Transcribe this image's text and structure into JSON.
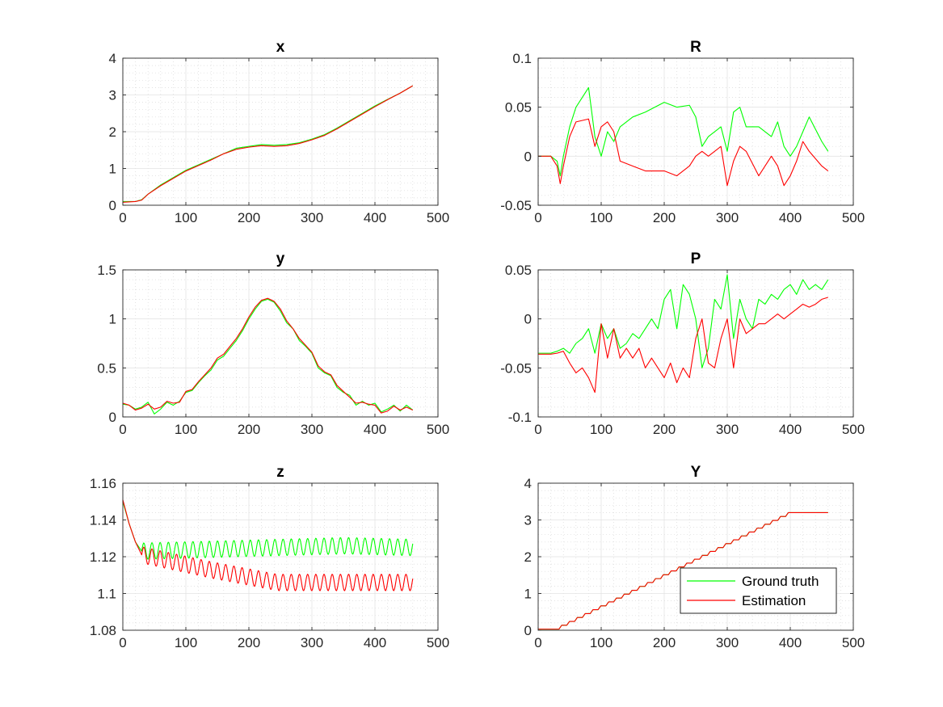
{
  "colors": {
    "ground_truth": "#00ff00",
    "estimation": "#ff0000",
    "axis": "#262626",
    "background": "#ffffff"
  },
  "legend": {
    "placement": "lower-right of bottom-right subplot",
    "entries": [
      "Ground truth",
      "Estimation"
    ]
  },
  "chart_data": [
    {
      "type": "line",
      "title": "x",
      "xlim": [
        0,
        500
      ],
      "ylim": [
        0,
        4
      ],
      "xticks": [
        "0",
        "100",
        "200",
        "300",
        "400",
        "500"
      ],
      "yticks": [
        "0",
        "1",
        "2",
        "3",
        "4"
      ],
      "grid": "major and minor",
      "series": [
        {
          "name": "Ground truth",
          "x": [
            0,
            20,
            30,
            40,
            60,
            80,
            100,
            120,
            140,
            160,
            180,
            200,
            220,
            240,
            260,
            280,
            300,
            320,
            340,
            360,
            380,
            400,
            420,
            440,
            460
          ],
          "y": [
            0.1,
            0.1,
            0.15,
            0.3,
            0.55,
            0.75,
            0.95,
            1.1,
            1.25,
            1.4,
            1.55,
            1.6,
            1.65,
            1.63,
            1.65,
            1.7,
            1.8,
            1.92,
            2.1,
            2.3,
            2.5,
            2.7,
            2.88,
            3.05,
            3.25
          ]
        },
        {
          "name": "Estimation",
          "x": [
            0,
            20,
            30,
            40,
            60,
            80,
            100,
            120,
            140,
            160,
            180,
            200,
            220,
            240,
            260,
            280,
            300,
            320,
            340,
            360,
            380,
            400,
            420,
            440,
            460
          ],
          "y": [
            0.08,
            0.1,
            0.14,
            0.3,
            0.53,
            0.73,
            0.93,
            1.08,
            1.23,
            1.4,
            1.52,
            1.58,
            1.62,
            1.6,
            1.62,
            1.68,
            1.78,
            1.9,
            2.08,
            2.28,
            2.48,
            2.68,
            2.87,
            3.05,
            3.25
          ]
        }
      ]
    },
    {
      "type": "line",
      "title": "R",
      "xlim": [
        0,
        500
      ],
      "ylim": [
        -0.05,
        0.1
      ],
      "xticks": [
        "0",
        "100",
        "200",
        "300",
        "400",
        "500"
      ],
      "yticks": [
        "-0.05",
        "0",
        "0.05",
        "0.1"
      ],
      "grid": "major and minor",
      "series": [
        {
          "name": "Ground truth",
          "x": [
            0,
            20,
            30,
            35,
            40,
            50,
            60,
            80,
            90,
            100,
            110,
            120,
            130,
            150,
            170,
            200,
            220,
            240,
            250,
            260,
            270,
            290,
            300,
            310,
            320,
            330,
            350,
            370,
            380,
            390,
            400,
            410,
            420,
            430,
            450,
            460
          ],
          "y": [
            0,
            0,
            -0.005,
            -0.02,
            0.0,
            0.03,
            0.05,
            0.07,
            0.02,
            0.0,
            0.025,
            0.015,
            0.03,
            0.04,
            0.045,
            0.055,
            0.05,
            0.052,
            0.04,
            0.01,
            0.02,
            0.03,
            0.005,
            0.045,
            0.05,
            0.03,
            0.03,
            0.02,
            0.035,
            0.01,
            0.0,
            0.01,
            0.025,
            0.04,
            0.015,
            0.005
          ]
        },
        {
          "name": "Estimation",
          "x": [
            0,
            20,
            30,
            35,
            40,
            50,
            60,
            80,
            90,
            100,
            110,
            120,
            130,
            150,
            170,
            200,
            220,
            240,
            250,
            260,
            270,
            290,
            300,
            310,
            320,
            330,
            350,
            370,
            380,
            390,
            400,
            410,
            420,
            430,
            450,
            460
          ],
          "y": [
            0,
            0,
            -0.01,
            -0.028,
            -0.01,
            0.02,
            0.035,
            0.038,
            0.01,
            0.03,
            0.035,
            0.025,
            -0.005,
            -0.01,
            -0.015,
            -0.015,
            -0.02,
            -0.01,
            0.0,
            0.005,
            0.0,
            0.01,
            -0.03,
            -0.005,
            0.01,
            0.005,
            -0.02,
            0.0,
            -0.01,
            -0.03,
            -0.02,
            -0.005,
            0.015,
            0.005,
            -0.01,
            -0.015
          ]
        }
      ]
    },
    {
      "type": "line",
      "title": "y",
      "xlim": [
        0,
        500
      ],
      "ylim": [
        0,
        1.5
      ],
      "xticks": [
        "0",
        "100",
        "200",
        "300",
        "400",
        "500"
      ],
      "yticks": [
        "0",
        "0.5",
        "1",
        "1.5"
      ],
      "grid": "major and minor",
      "series": [
        {
          "name": "Ground truth",
          "x": [
            0,
            10,
            20,
            30,
            40,
            50,
            60,
            70,
            80,
            90,
            100,
            110,
            120,
            130,
            140,
            150,
            160,
            170,
            180,
            190,
            200,
            210,
            220,
            230,
            240,
            250,
            260,
            270,
            280,
            290,
            300,
            310,
            320,
            330,
            340,
            350,
            360,
            370,
            380,
            390,
            400,
            410,
            420,
            430,
            440,
            450,
            460
          ],
          "y": [
            0.13,
            0.12,
            0.08,
            0.1,
            0.15,
            0.03,
            0.08,
            0.15,
            0.12,
            0.16,
            0.25,
            0.27,
            0.35,
            0.42,
            0.48,
            0.58,
            0.62,
            0.7,
            0.78,
            0.88,
            1.0,
            1.1,
            1.18,
            1.2,
            1.17,
            1.08,
            0.96,
            0.9,
            0.78,
            0.72,
            0.65,
            0.5,
            0.45,
            0.42,
            0.3,
            0.25,
            0.22,
            0.12,
            0.16,
            0.12,
            0.14,
            0.05,
            0.08,
            0.12,
            0.06,
            0.12,
            0.07
          ]
        },
        {
          "name": "Estimation",
          "x": [
            0,
            10,
            20,
            30,
            40,
            50,
            60,
            70,
            80,
            90,
            100,
            110,
            120,
            130,
            140,
            150,
            160,
            170,
            180,
            190,
            200,
            210,
            220,
            230,
            240,
            250,
            260,
            270,
            280,
            290,
            300,
            310,
            320,
            330,
            340,
            350,
            360,
            370,
            380,
            390,
            400,
            410,
            420,
            430,
            440,
            450,
            460
          ],
          "y": [
            0.14,
            0.12,
            0.07,
            0.09,
            0.13,
            0.08,
            0.1,
            0.16,
            0.14,
            0.15,
            0.26,
            0.28,
            0.36,
            0.43,
            0.5,
            0.6,
            0.64,
            0.72,
            0.8,
            0.9,
            1.02,
            1.12,
            1.19,
            1.21,
            1.18,
            1.1,
            0.98,
            0.9,
            0.8,
            0.73,
            0.66,
            0.52,
            0.46,
            0.43,
            0.32,
            0.26,
            0.2,
            0.14,
            0.15,
            0.13,
            0.12,
            0.04,
            0.06,
            0.11,
            0.07,
            0.1,
            0.07
          ]
        }
      ]
    },
    {
      "type": "line",
      "title": "P",
      "xlim": [
        0,
        500
      ],
      "ylim": [
        -0.1,
        0.05
      ],
      "xticks": [
        "0",
        "100",
        "200",
        "300",
        "400",
        "500"
      ],
      "yticks": [
        "-0.1",
        "-0.05",
        "0",
        "0.05"
      ],
      "grid": "major and minor",
      "series": [
        {
          "name": "Ground truth",
          "x": [
            0,
            20,
            30,
            40,
            50,
            60,
            70,
            80,
            90,
            100,
            110,
            120,
            130,
            140,
            150,
            160,
            170,
            180,
            190,
            200,
            210,
            220,
            230,
            240,
            250,
            260,
            270,
            280,
            290,
            300,
            310,
            320,
            330,
            340,
            350,
            360,
            370,
            380,
            390,
            400,
            410,
            420,
            430,
            440,
            450,
            460
          ],
          "y": [
            -0.035,
            -0.035,
            -0.033,
            -0.03,
            -0.035,
            -0.025,
            -0.02,
            -0.01,
            -0.035,
            -0.005,
            -0.02,
            -0.01,
            -0.03,
            -0.025,
            -0.015,
            -0.02,
            -0.01,
            0.0,
            -0.01,
            0.02,
            0.03,
            -0.01,
            0.035,
            0.025,
            0.0,
            -0.05,
            -0.03,
            0.02,
            0.01,
            0.045,
            -0.02,
            0.02,
            0.0,
            -0.01,
            0.02,
            0.015,
            0.025,
            0.02,
            0.03,
            0.035,
            0.025,
            0.04,
            0.03,
            0.035,
            0.03,
            0.04
          ]
        },
        {
          "name": "Estimation",
          "x": [
            0,
            20,
            30,
            40,
            50,
            60,
            70,
            80,
            90,
            100,
            110,
            120,
            130,
            140,
            150,
            160,
            170,
            180,
            190,
            200,
            210,
            220,
            230,
            240,
            250,
            260,
            270,
            280,
            290,
            300,
            310,
            320,
            330,
            340,
            350,
            360,
            370,
            380,
            390,
            400,
            410,
            420,
            430,
            440,
            450,
            460
          ],
          "y": [
            -0.036,
            -0.036,
            -0.035,
            -0.033,
            -0.045,
            -0.055,
            -0.05,
            -0.06,
            -0.075,
            -0.005,
            -0.04,
            -0.01,
            -0.04,
            -0.03,
            -0.04,
            -0.03,
            -0.05,
            -0.04,
            -0.05,
            -0.06,
            -0.045,
            -0.065,
            -0.05,
            -0.06,
            -0.02,
            0.0,
            -0.045,
            -0.05,
            -0.02,
            0.0,
            -0.05,
            0.0,
            -0.015,
            -0.01,
            -0.005,
            -0.005,
            0.0,
            0.005,
            0.0,
            0.005,
            0.01,
            0.015,
            0.012,
            0.015,
            0.02,
            0.022
          ]
        }
      ]
    },
    {
      "type": "line",
      "title": "z",
      "xlim": [
        0,
        500
      ],
      "ylim": [
        1.08,
        1.16
      ],
      "xticks": [
        "0",
        "100",
        "200",
        "300",
        "400",
        "500"
      ],
      "yticks": [
        "1.08",
        "1.1",
        "1.12",
        "1.14",
        "1.16"
      ],
      "grid": "major and minor",
      "series": [
        {
          "name": "Ground truth",
          "x": [
            0,
            10,
            20,
            30,
            40,
            460
          ],
          "y": [
            1.15,
            1.138,
            1.128,
            1.122,
            1.123,
            1.124
          ],
          "oscillation": {
            "x_start": 30,
            "x_end": 460,
            "period": 13,
            "amplitude": 0.0045,
            "center_y": [
              1.123,
              1.124,
              1.125,
              1.126,
              1.125
            ]
          }
        },
        {
          "name": "Estimation",
          "x": [
            0,
            10,
            20,
            30,
            40,
            460
          ],
          "y": [
            1.151,
            1.138,
            1.128,
            1.12,
            1.118,
            1.106
          ],
          "oscillation": {
            "x_start": 30,
            "x_end": 460,
            "period": 13,
            "amplitude": 0.0045,
            "center_y": [
              1.121,
              1.113,
              1.106,
              1.106,
              1.106
            ]
          }
        }
      ]
    },
    {
      "type": "line",
      "title": "Y",
      "xlim": [
        0,
        500
      ],
      "ylim": [
        0,
        4
      ],
      "xticks": [
        "0",
        "100",
        "200",
        "300",
        "400",
        "500"
      ],
      "yticks": [
        "0",
        "1",
        "2",
        "3",
        "4"
      ],
      "grid": "major and minor",
      "legend": "lower-right",
      "series": [
        {
          "name": "Ground truth",
          "staircase": {
            "flat_until": 33,
            "start_y": 0.03,
            "end_x": 405,
            "end_y": 3.2,
            "step_width": 12.4,
            "hold_until": 460
          }
        },
        {
          "name": "Estimation",
          "staircase": {
            "flat_until": 33,
            "start_y": 0.03,
            "end_x": 405,
            "end_y": 3.2,
            "step_width": 12.4,
            "hold_until": 460
          }
        }
      ]
    }
  ]
}
